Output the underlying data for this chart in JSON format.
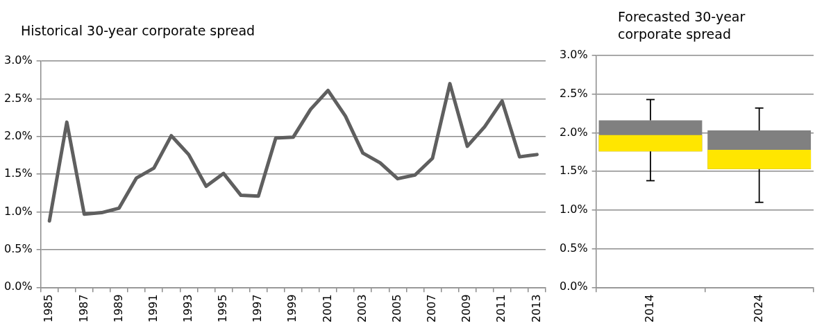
{
  "chart_data": [
    {
      "type": "line",
      "title": "Historical 30-year corporate spread",
      "categories": [
        "1985",
        null,
        "1987",
        null,
        "1989",
        null,
        "1991",
        null,
        "1993",
        null,
        "1995",
        null,
        "1997",
        null,
        "1999",
        null,
        "2001",
        null,
        "2003",
        null,
        "2005",
        null,
        "2007",
        null,
        "2009",
        null,
        "2011",
        null,
        "2013"
      ],
      "series": [
        {
          "color": "#5f5f5f",
          "values": [
            0.88,
            2.19,
            0.97,
            0.99,
            1.05,
            1.45,
            1.58,
            2.01,
            1.76,
            1.34,
            1.51,
            1.22,
            1.21,
            1.98,
            1.99,
            2.36,
            2.61,
            2.27,
            1.78,
            1.65,
            1.44,
            1.49,
            1.71,
            2.7,
            1.87,
            2.13,
            2.47,
            1.73,
            1.76
          ]
        }
      ],
      "ylim": [
        0,
        3
      ],
      "yticks": [
        {
          "value": 0,
          "label": "0.0%"
        },
        {
          "value": 0.5,
          "label": "0.5%"
        },
        {
          "value": 1,
          "label": "1.0%"
        },
        {
          "value": 1.5,
          "label": "1.5%"
        },
        {
          "value": 2,
          "label": "2.0%"
        },
        {
          "value": 2.5,
          "label": "2.5%"
        },
        {
          "value": 3,
          "label": "3.0%"
        }
      ],
      "grid": "y",
      "legend": false,
      "marker": "none",
      "line_style": "solid"
    },
    {
      "type": "box",
      "title": "Forecasted 30-year corporate spread",
      "categories": [
        "2014",
        "2024"
      ],
      "color": "#ffe600",
      "series": [
        {
          "color": "#808080",
          "boxes": [
            {
              "low": 1.38,
              "q1": 1.76,
              "median": 1.97,
              "q3": 2.16,
              "high": 2.43
            },
            {
              "low": 1.1,
              "q1": 1.53,
              "median": 1.78,
              "q3": 2.03,
              "high": 2.32
            }
          ]
        }
      ],
      "ylim": [
        0,
        3
      ],
      "yticks": [
        {
          "value": 0,
          "label": "0.0%"
        },
        {
          "value": 0.5,
          "label": "0.5%"
        },
        {
          "value": 1,
          "label": "1.0%"
        },
        {
          "value": 1.5,
          "label": "1.5%"
        },
        {
          "value": 2,
          "label": "2.0%"
        },
        {
          "value": 2.5,
          "label": "2.5%"
        },
        {
          "value": 3,
          "label": "3.0%"
        }
      ],
      "grid": "y",
      "legend": false
    }
  ]
}
